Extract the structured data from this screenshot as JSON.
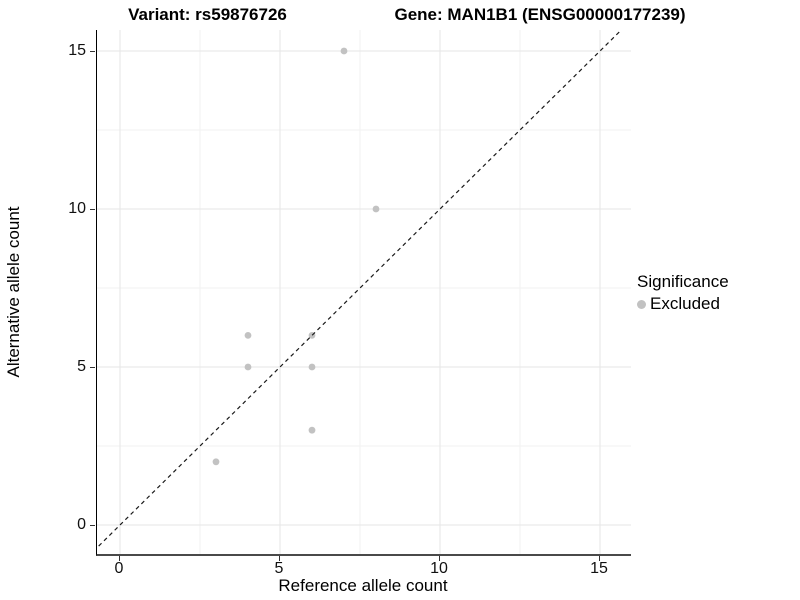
{
  "chart_data": {
    "type": "scatter",
    "titles": {
      "left": "Variant: rs59876726",
      "right": "Gene: MAN1B1 (ENSG00000177239)"
    },
    "xlabel": "Reference allele count",
    "ylabel": "Alternative allele count",
    "x_ticks": [
      0,
      5,
      10,
      15
    ],
    "y_ticks": [
      0,
      5,
      10,
      15
    ],
    "x_minor_ticks": [
      2.5,
      7.5,
      12.5
    ],
    "y_minor_ticks": [
      2.5,
      7.5,
      12.5
    ],
    "xlim": [
      -0.72,
      15.97
    ],
    "ylim": [
      -0.92,
      15.66
    ],
    "grid": "major and minor, light gray, on white panel",
    "reference_line": {
      "type": "identity",
      "slope": 1,
      "intercept": 0,
      "style": "dashed",
      "color": "#1a1a1a"
    },
    "series": [
      {
        "name": "Excluded",
        "color": "#c2c2c2",
        "points": [
          [
            3,
            2
          ],
          [
            4,
            5
          ],
          [
            4,
            6
          ],
          [
            6,
            3
          ],
          [
            6,
            5
          ],
          [
            6,
            6
          ],
          [
            7,
            15
          ],
          [
            8,
            10
          ]
        ]
      }
    ],
    "legend": {
      "title": "Significance",
      "position": "right",
      "items": [
        {
          "label": "Excluded",
          "color": "#c2c2c2"
        }
      ]
    }
  },
  "colors": {
    "background": "#ffffff",
    "grid_major": "#e5e5e5",
    "grid_minor": "#f2f2f2",
    "axis_line_x": "#4a4a4a",
    "axis_line_y": "#000000",
    "tick": "#333333",
    "text": "#000000",
    "point": "#c2c2c2"
  }
}
